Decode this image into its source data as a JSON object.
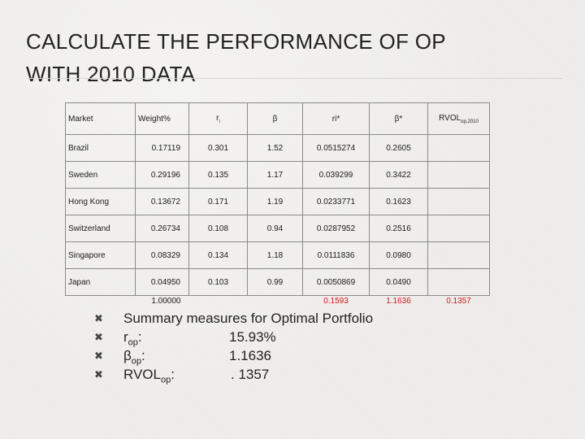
{
  "slide": {
    "title_line1": "CALCULATE THE PERFORMANCE OF OP",
    "title_line2": "WITH 2010 DATA"
  },
  "table": {
    "headers": {
      "market": "Market",
      "weight": "Weight%",
      "r_main": "r",
      "r_sub": "i",
      "beta": "β",
      "r_star": "ri*",
      "beta_star": "β*",
      "rvol_main": "RVOL",
      "rvol_sub": "op,2010"
    },
    "rows": [
      {
        "market": "Brazil",
        "weight": "0.17119",
        "r": "0.301",
        "beta": "1.52",
        "r_star": "0.0515274",
        "beta_star": "0.2605"
      },
      {
        "market": "Sweden",
        "weight": "0.29196",
        "r": "0.135",
        "beta": "1.17",
        "r_star": "0.039299",
        "beta_star": "0.3422"
      },
      {
        "market": "Hong Kong",
        "weight": "0.13672",
        "r": "0.171",
        "beta": "1.19",
        "r_star": "0.0233771",
        "beta_star": "0.1623"
      },
      {
        "market": "Switzerland",
        "weight": "0.26734",
        "r": "0.108",
        "beta": "0.94",
        "r_star": "0.0287952",
        "beta_star": "0.2516"
      },
      {
        "market": "Singapore",
        "weight": "0.08329",
        "r": "0.134",
        "beta": "1.18",
        "r_star": "0.0111836",
        "beta_star": "0.0980"
      },
      {
        "market": "Japan",
        "weight": "0.04950",
        "r": "0.103",
        "beta": "0.99",
        "r_star": "0.0050869",
        "beta_star": "0.0490"
      }
    ],
    "totals": {
      "weight": "1.00000",
      "r_star": "0.1593",
      "beta_star": "1.1636",
      "rvol": "0.1357"
    }
  },
  "summary": {
    "heading": "Summary measures for Optimal Portfolio",
    "items": [
      {
        "label_main": "r",
        "label_sub": "op",
        "label_suffix": ":",
        "value": "15.93%"
      },
      {
        "label_main": "β",
        "label_sub": "op",
        "label_suffix": ":",
        "value": "1.1636"
      },
      {
        "label_main": "RVOL",
        "label_sub": "op",
        "label_suffix": ":",
        "value": ". 1357"
      }
    ]
  },
  "colors": {
    "accent_red": "#cc1a1a"
  },
  "icons": {
    "bullet": "x-bullet-icon"
  }
}
